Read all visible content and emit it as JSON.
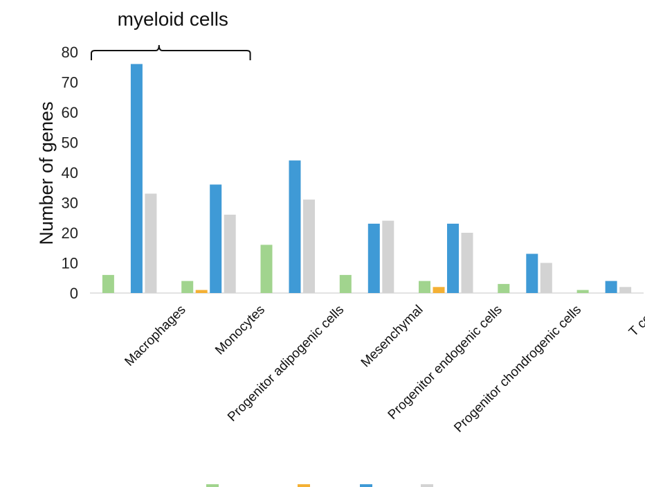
{
  "chart_data": {
    "type": "bar",
    "ylabel": "Number of genes",
    "xlabel": "",
    "ylim": [
      0,
      80
    ],
    "yticks": [
      0,
      10,
      20,
      30,
      40,
      50,
      60,
      70,
      80
    ],
    "grid": false,
    "legend_position": "bottom",
    "categories": [
      "Macrophages",
      "Monocytes",
      "Progenitor adipogenic cells",
      "Mesenchymal",
      "Progenitor endogenic cells",
      "Progenitor chondrogenic cells",
      "T cells"
    ],
    "series": [
      {
        "color": "#a1d48e",
        "values": [
          6,
          4,
          16,
          6,
          4,
          3,
          1
        ]
      },
      {
        "color": "#f4b034",
        "values": [
          0,
          1,
          0,
          0,
          2,
          0,
          0
        ]
      },
      {
        "color": "#3f9ad6",
        "values": [
          76,
          36,
          44,
          23,
          23,
          13,
          4
        ]
      },
      {
        "color": "#d3d3d3",
        "values": [
          33,
          26,
          31,
          24,
          20,
          10,
          2
        ]
      }
    ],
    "annotation": {
      "text": "myeloid cells",
      "spans_categories": [
        0,
        1
      ]
    }
  }
}
